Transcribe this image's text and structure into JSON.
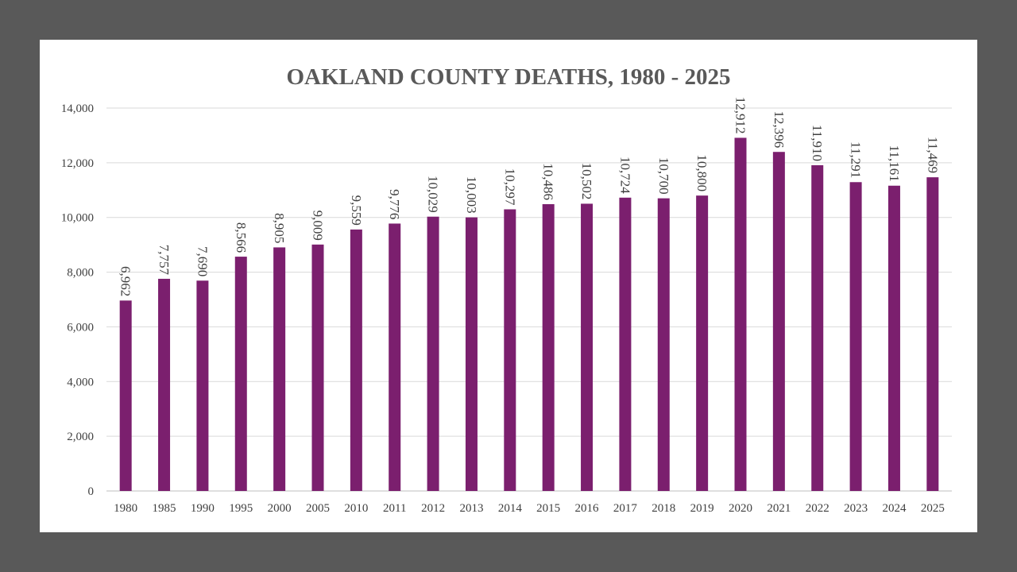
{
  "chart_data": {
    "type": "bar",
    "title": "OAKLAND COUNTY DEATHS, 1980 - 2025",
    "xlabel": "",
    "ylabel": "",
    "ylim": [
      0,
      14000
    ],
    "yticks": [
      0,
      2000,
      4000,
      6000,
      8000,
      10000,
      12000,
      14000
    ],
    "ytick_labels": [
      "0",
      "2,000",
      "4,000",
      "6,000",
      "8,000",
      "10,000",
      "12,000",
      "14,000"
    ],
    "grid": true,
    "legend": "none",
    "bar_color": "#7B1F6E",
    "categories": [
      "1980",
      "1985",
      "1990",
      "1995",
      "2000",
      "2005",
      "2010",
      "2011",
      "2012",
      "2013",
      "2014",
      "2015",
      "2016",
      "2017",
      "2018",
      "2019",
      "2020",
      "2021",
      "2022",
      "2023",
      "2024",
      "2025"
    ],
    "values": [
      6962,
      7757,
      7690,
      8566,
      8905,
      9009,
      9559,
      9776,
      10029,
      10003,
      10297,
      10486,
      10502,
      10724,
      10700,
      10800,
      12912,
      12396,
      11910,
      11291,
      11161,
      11469
    ],
    "data_labels": [
      "6,962",
      "7,757",
      "7,690",
      "8,566",
      "8,905",
      "9,009",
      "9,559",
      "9,776",
      "10,029",
      "10,003",
      "10,297",
      "10,486",
      "10,502",
      "10,724",
      "10,700",
      "10,800",
      "12,912",
      "12,396",
      "11,910",
      "11,291",
      "11,161",
      "11,469"
    ]
  }
}
